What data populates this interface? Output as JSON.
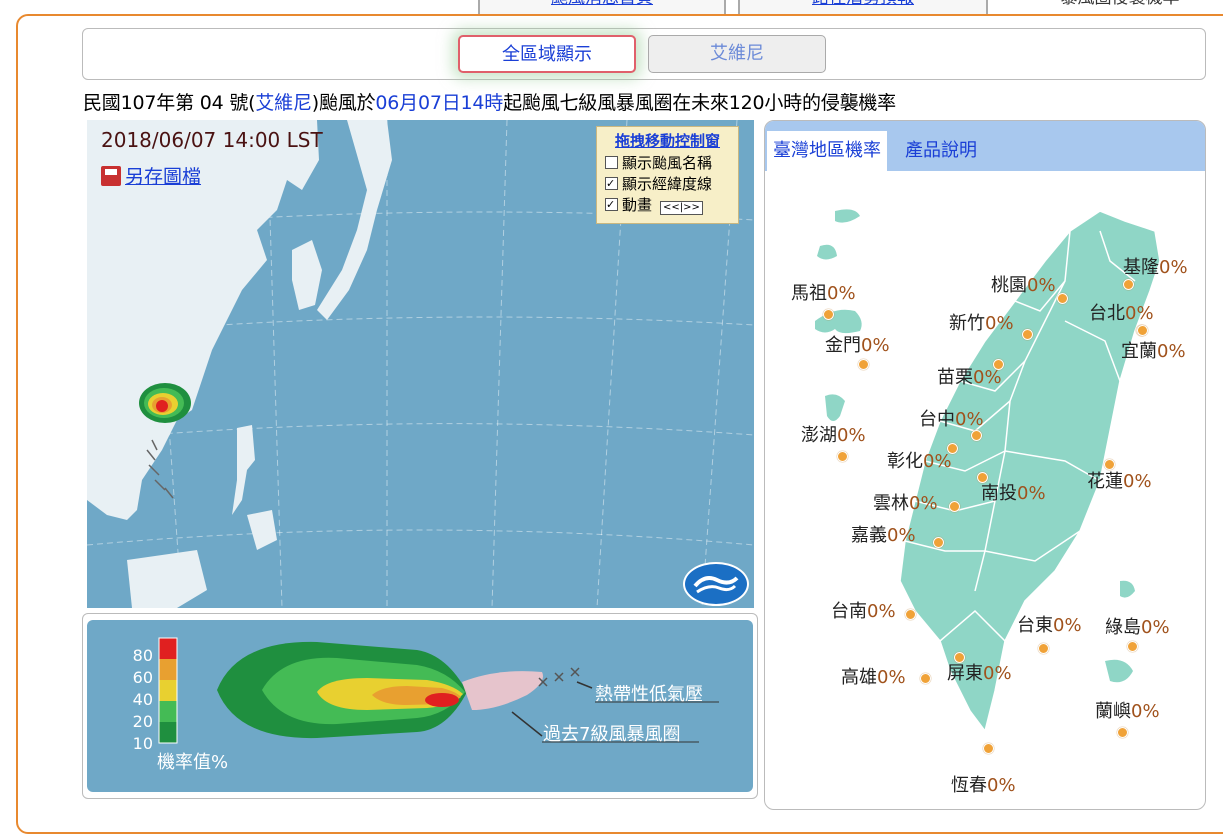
{
  "top_tabs": [
    {
      "label": "颱風消息首頁",
      "active": false
    },
    {
      "label": "路徑潛勢預報",
      "active": false
    },
    {
      "label": "暴風圈侵襲機率",
      "active": true
    }
  ],
  "area_buttons": {
    "all": "全區域顯示",
    "typhoon": "艾維尼"
  },
  "headline": {
    "part1": "民國107年第 04 號(",
    "typhoon_name": "艾維尼",
    "part2": ")颱風於",
    "time": "06月07日14時",
    "part3": "起颱風七級風暴風圈在未來120小時的侵襲機率"
  },
  "map": {
    "timestamp": "2018/06/07 14:00 LST",
    "save_label": "另存圖檔",
    "control": {
      "title": "拖拽移動控制窗",
      "show_name": "顯示颱風名稱",
      "show_name_checked": false,
      "show_grid": "顯示經緯度線",
      "show_grid_checked": true,
      "animation": "動畫",
      "animation_checked": true,
      "anim_button": "<<|>>"
    }
  },
  "legend": {
    "scale_values": [
      "80",
      "60",
      "40",
      "20",
      "10"
    ],
    "scale_colors": [
      "#e02020",
      "#e8a030",
      "#e8d030",
      "#44bb55",
      "#1f8f3f"
    ],
    "scale_label": "機率值%",
    "tropical_low": "熱帶性低氣壓",
    "past_radius": "過去7級風暴風圈"
  },
  "right_panel": {
    "tabs": [
      {
        "label": "臺灣地區機率",
        "active": true
      },
      {
        "label": "產品說明",
        "active": false
      }
    ],
    "places": [
      {
        "name": "馬祖",
        "pct": "0%"
      },
      {
        "name": "金門",
        "pct": "0%"
      },
      {
        "name": "澎湖",
        "pct": "0%"
      },
      {
        "name": "基隆",
        "pct": "0%"
      },
      {
        "name": "桃園",
        "pct": "0%"
      },
      {
        "name": "台北",
        "pct": "0%"
      },
      {
        "name": "新竹",
        "pct": "0%"
      },
      {
        "name": "宜蘭",
        "pct": "0%"
      },
      {
        "name": "苗栗",
        "pct": "0%"
      },
      {
        "name": "台中",
        "pct": "0%"
      },
      {
        "name": "彰化",
        "pct": "0%"
      },
      {
        "name": "南投",
        "pct": "0%"
      },
      {
        "name": "花蓮",
        "pct": "0%"
      },
      {
        "name": "雲林",
        "pct": "0%"
      },
      {
        "name": "嘉義",
        "pct": "0%"
      },
      {
        "name": "台南",
        "pct": "0%"
      },
      {
        "name": "台東",
        "pct": "0%"
      },
      {
        "name": "綠島",
        "pct": "0%"
      },
      {
        "name": "高雄",
        "pct": "0%"
      },
      {
        "name": "屏東",
        "pct": "0%"
      },
      {
        "name": "蘭嶼",
        "pct": "0%"
      },
      {
        "name": "恆春",
        "pct": "0%"
      }
    ]
  }
}
